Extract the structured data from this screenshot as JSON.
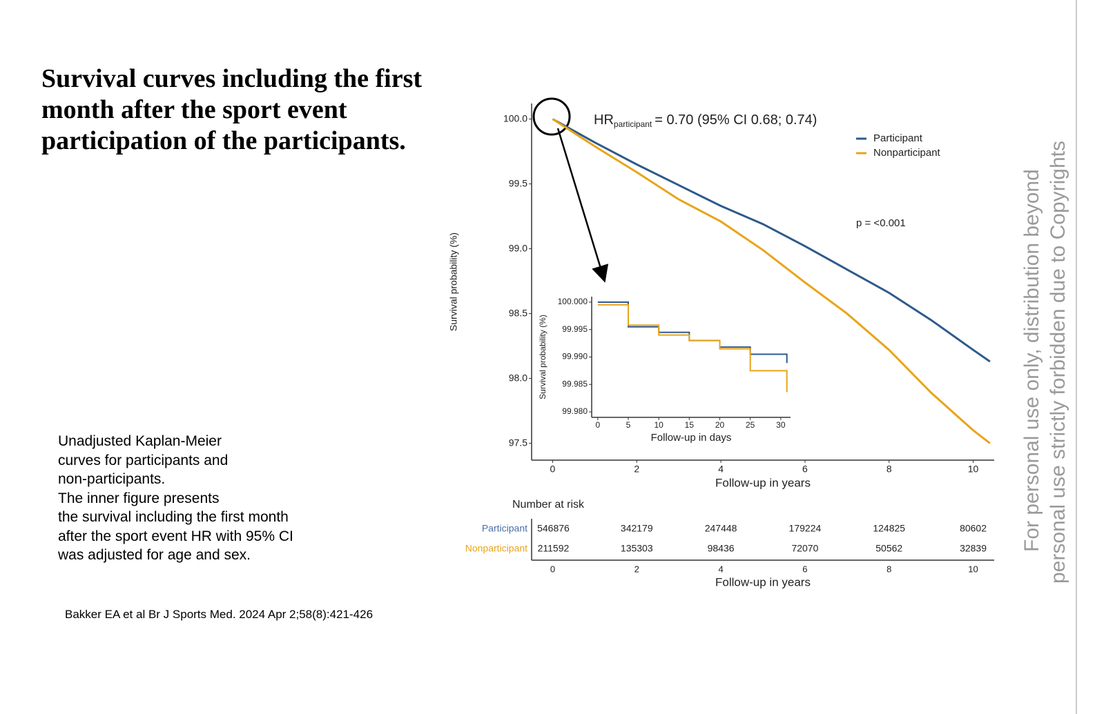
{
  "title": "Survival curves including the first month after the sport event participation of the participants.",
  "description": [
    "Unadjusted Kaplan-Meier",
    "curves for participants and",
    "non-participants.",
    "The inner figure presents",
    "the survival including the first month",
    "after the sport event HR with 95% CI",
    "was adjusted for age and sex."
  ],
  "citation": "Bakker EA et al Br J Sports Med. 2024 Apr 2;58(8):421-426",
  "watermark": [
    "For personal use only, distribution beyond",
    "personal use strictly forbidden due to Copyrights"
  ],
  "chart_data": [
    {
      "type": "line",
      "xlabel": "Follow-up in years",
      "ylabel": "Survival probability (%)",
      "hr_label": "HR",
      "hr_subscript": "participant",
      "hr_text": "= 0.70 (95% CI 0.68; 0.74)",
      "p_value": "p = <0.001",
      "legend": "top-right",
      "x": [
        0,
        1,
        2,
        3,
        4,
        5,
        6,
        7,
        8,
        9,
        10,
        10.4
      ],
      "series": [
        {
          "name": "Participant",
          "color": "#2e5a8a",
          "values": [
            100.0,
            99.82,
            99.65,
            99.49,
            99.33,
            99.19,
            99.02,
            98.84,
            98.66,
            98.45,
            98.22,
            98.13
          ]
        },
        {
          "name": "Nonparticipant",
          "color": "#e8a41a",
          "values": [
            100.0,
            99.79,
            99.59,
            99.38,
            99.21,
            98.99,
            98.74,
            98.5,
            98.22,
            97.89,
            97.6,
            97.5
          ]
        }
      ],
      "xlim": [
        -0.5,
        10.5
      ],
      "ylim": [
        97.37,
        100.12
      ],
      "xticks": [
        0,
        2,
        4,
        6,
        8,
        10
      ],
      "yticks": [
        97.5,
        {
          "value": 98,
          "label": "98.0"
        },
        98.5,
        {
          "value": 99,
          "label": "99.0"
        },
        99.5,
        {
          "value": 100,
          "label": "100.0"
        }
      ]
    },
    {
      "type": "step",
      "xlabel": "Follow-up in days",
      "ylabel": "Survival probability (%)",
      "x": [
        0,
        5,
        10,
        15,
        20,
        25,
        31
      ],
      "series": [
        {
          "name": "Participant",
          "color": "#2e5a8a",
          "values": [
            100.0,
            99.9955,
            99.9945,
            99.993,
            99.9918,
            99.9905,
            99.9889
          ]
        },
        {
          "name": "Nonparticipant",
          "color": "#e8a41a",
          "values": [
            99.9995,
            99.9958,
            99.994,
            99.993,
            99.9915,
            99.9875,
            99.9836
          ]
        }
      ],
      "xlim": [
        -1,
        31.6
      ],
      "ylim": [
        99.979,
        100.001
      ],
      "xticks": [
        0,
        5,
        10,
        15,
        20,
        25,
        30
      ],
      "yticks": [
        {
          "value": 99.98,
          "label": "99.980"
        },
        {
          "value": 99.985,
          "label": "99.985"
        },
        {
          "value": 99.99,
          "label": "99.990"
        },
        {
          "value": 99.995,
          "label": "99.995"
        },
        {
          "value": 100,
          "label": "100.000"
        }
      ]
    }
  ],
  "risk_table": {
    "title": "Number at risk",
    "xlabel": "Follow-up in years",
    "x": [
      0,
      2,
      4,
      6,
      8,
      10
    ],
    "rows": [
      {
        "name": "Participant",
        "color": "#4a6fa5",
        "values": [
          546876,
          342179,
          247448,
          179224,
          124825,
          80602
        ]
      },
      {
        "name": "Nonparticipant",
        "color": "#e8a41a",
        "values": [
          211592,
          135303,
          98436,
          72070,
          50562,
          32839
        ]
      }
    ]
  }
}
